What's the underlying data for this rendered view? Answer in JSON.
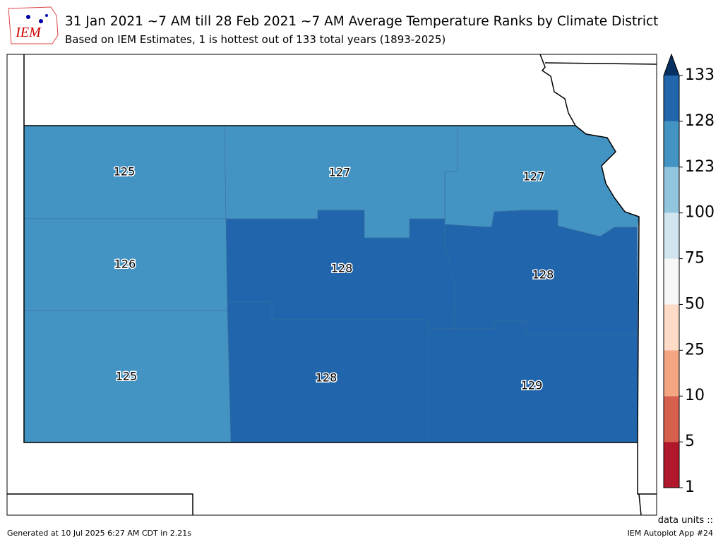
{
  "header": {
    "logo_text": "IEM",
    "title": "31 Jan 2021 ~7 AM till 28 Feb 2021 ~7 AM Average Temperature Ranks by Climate District",
    "subtitle": "Based on IEM Estimates, 1 is hottest out of 133 total years (1893-2025)"
  },
  "map": {
    "district_ranks": [
      125,
      127,
      127,
      126,
      128,
      128,
      125,
      128,
      129
    ]
  },
  "colorbar": {
    "levels": [
      1,
      5,
      10,
      25,
      50,
      75,
      100,
      123,
      128,
      133
    ],
    "colors": [
      "#b2182b",
      "#d6604d",
      "#f4a582",
      "#fddbc7",
      "#f7f7f7",
      "#d1e5f0",
      "#92c5de",
      "#4393c3",
      "#2166ac"
    ],
    "extend_color": "#053061"
  },
  "footer": {
    "generated": "Generated at 10 Jul 2025 6:27 AM CDT in 2.21s",
    "units": "data units ::",
    "app": "IEM Autoplot App #24"
  }
}
